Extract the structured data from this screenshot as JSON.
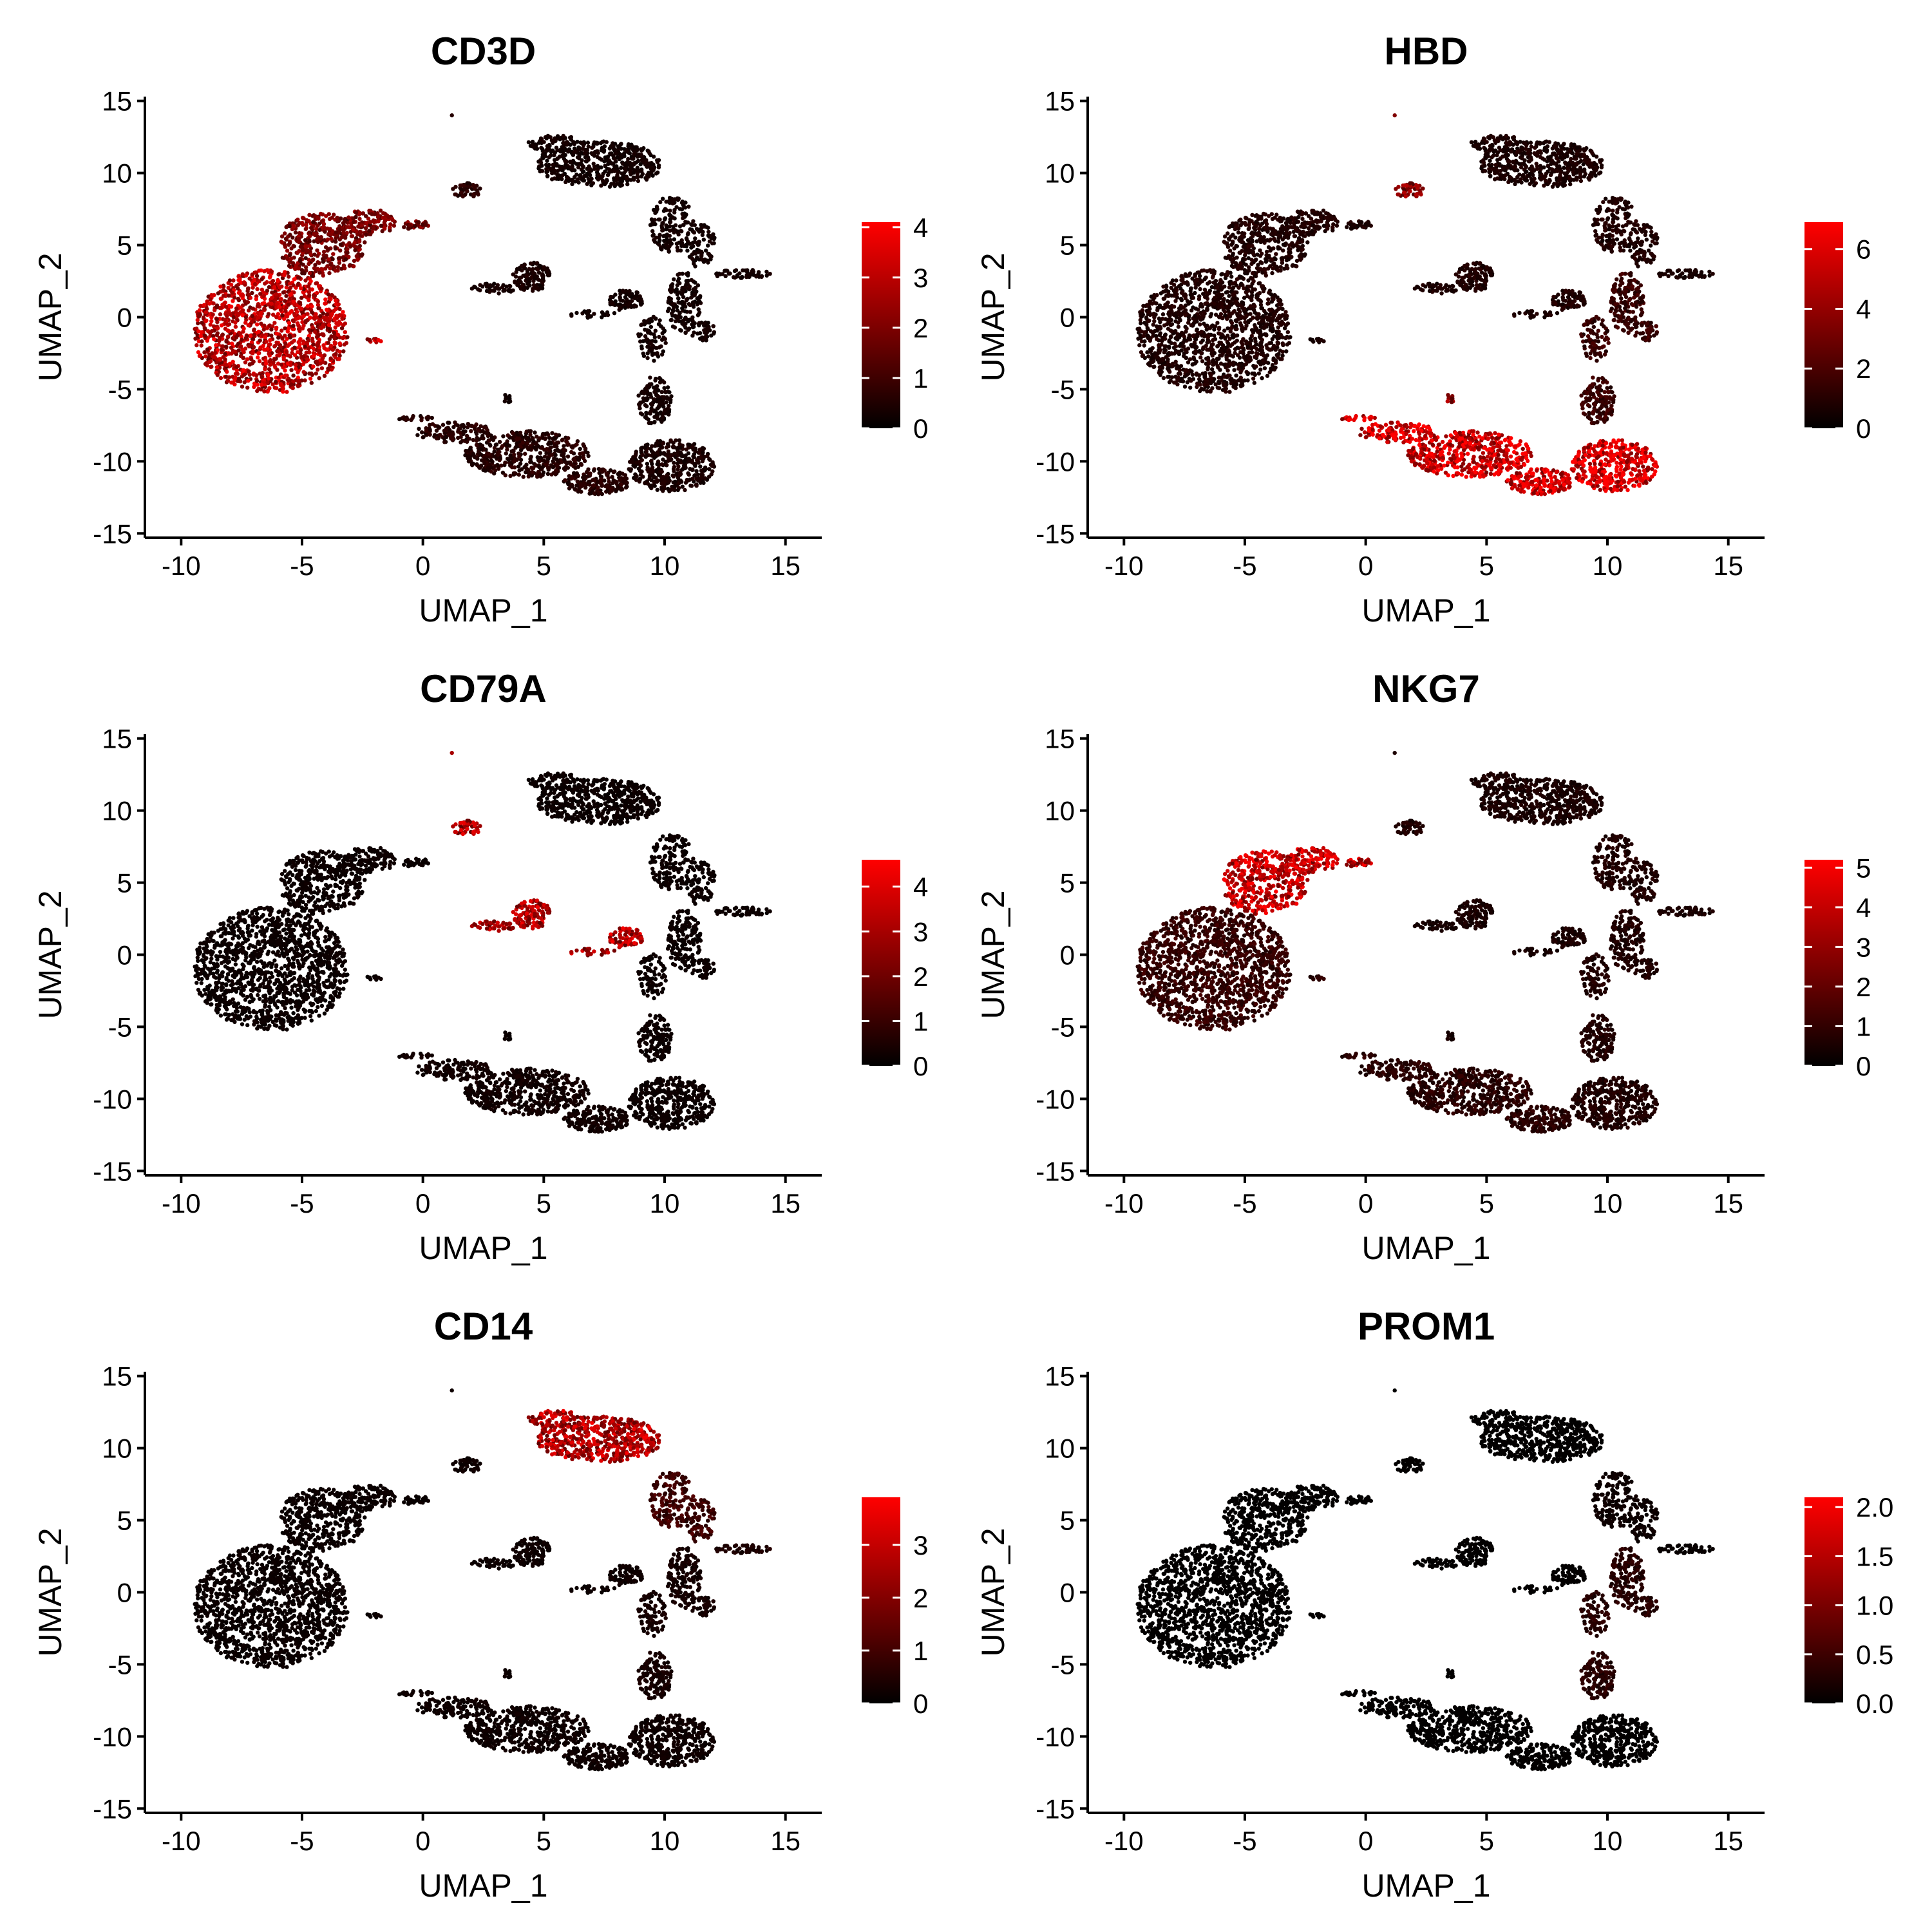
{
  "colors": {
    "low": "#000000",
    "high": "#ff0000",
    "axis": "#000000",
    "background": "#ffffff"
  },
  "chart_data": [
    {
      "type": "scatter",
      "title": "CD3D",
      "xlabel": "UMAP_1",
      "ylabel": "UMAP_2",
      "xlim": [
        -11.5,
        16.5
      ],
      "ylim": [
        -15.3,
        15.3
      ],
      "xticks": [
        "-10",
        "-5",
        "0",
        "5",
        "10",
        "15"
      ],
      "yticks": [
        "15",
        "10",
        "5",
        "0",
        "-5",
        "-10",
        "-15"
      ],
      "colorbar": {
        "min": 0,
        "max": 4.1,
        "ticks": [
          "0",
          "1",
          "2",
          "3",
          "4"
        ]
      },
      "cluster_expression": {
        "tcell": 2.8,
        "tcell_tip": 1.8,
        "tcell_small": 2.8,
        "top_small": 0.6,
        "bottom_arm": 0.6,
        "bottom_right": 0.4,
        "trunk": 0.3,
        "myeloid_top": 0.3,
        "myeloid_branch": 0.3,
        "right_tip": 0.3,
        "bcell_mid": 0.4,
        "bcell_small": 0.3,
        "dot_pair": 0.3
      },
      "grid": false,
      "legend": "right"
    },
    {
      "type": "scatter",
      "title": "HBD",
      "xlabel": "UMAP_1",
      "ylabel": "UMAP_2",
      "xlim": [
        -11.5,
        16.5
      ],
      "ylim": [
        -15.3,
        15.3
      ],
      "xticks": [
        "-10",
        "-5",
        "0",
        "5",
        "10",
        "15"
      ],
      "yticks": [
        "15",
        "10",
        "5",
        "0",
        "-5",
        "-10",
        "-15"
      ],
      "colorbar": {
        "min": 0,
        "max": 6.9,
        "ticks": [
          "0",
          "2",
          "4",
          "6"
        ]
      },
      "cluster_expression": {
        "tcell": 0.8,
        "tcell_tip": 0.8,
        "tcell_small": 0.6,
        "top_small": 3.5,
        "bottom_arm": 5.8,
        "bottom_right": 5.9,
        "trunk": 1.4,
        "myeloid_top": 0.7,
        "myeloid_branch": 0.8,
        "right_tip": 0.6,
        "bcell_mid": 0.8,
        "bcell_small": 0.8,
        "dot_pair": 4.0
      },
      "grid": false,
      "legend": "right"
    },
    {
      "type": "scatter",
      "title": "CD79A",
      "xlabel": "UMAP_1",
      "ylabel": "UMAP_2",
      "xlim": [
        -11.5,
        16.5
      ],
      "ylim": [
        -15.3,
        15.3
      ],
      "xticks": [
        "-10",
        "-5",
        "0",
        "5",
        "10",
        "15"
      ],
      "yticks": [
        "15",
        "10",
        "5",
        "0",
        "-5",
        "-10",
        "-15"
      ],
      "colorbar": {
        "min": 0,
        "max": 4.6,
        "ticks": [
          "0",
          "1",
          "2",
          "3",
          "4"
        ]
      },
      "cluster_expression": {
        "tcell": 0.2,
        "tcell_tip": 0.2,
        "tcell_small": 0.2,
        "top_small": 3.0,
        "bottom_arm": 0.3,
        "bottom_right": 0.2,
        "trunk": 0.2,
        "myeloid_top": 0.2,
        "myeloid_branch": 0.2,
        "right_tip": 0.2,
        "bcell_mid": 3.1,
        "bcell_small": 3.1,
        "dot_pair": 0.2
      },
      "grid": false,
      "legend": "right"
    },
    {
      "type": "scatter",
      "title": "NKG7",
      "xlabel": "UMAP_1",
      "ylabel": "UMAP_2",
      "xlim": [
        -11.5,
        16.5
      ],
      "ylim": [
        -15.3,
        15.3
      ],
      "xticks": [
        "-10",
        "-5",
        "0",
        "5",
        "10",
        "15"
      ],
      "yticks": [
        "15",
        "10",
        "5",
        "0",
        "-5",
        "-10",
        "-15"
      ],
      "colorbar": {
        "min": 0,
        "max": 5.2,
        "ticks": [
          "0",
          "1",
          "2",
          "3",
          "4",
          "5"
        ]
      },
      "cluster_expression": {
        "tcell": 1.0,
        "tcell_tip": 3.8,
        "tcell_small": 0.8,
        "top_small": 0.6,
        "bottom_arm": 0.8,
        "bottom_right": 0.6,
        "trunk": 0.6,
        "myeloid_top": 0.5,
        "myeloid_branch": 0.6,
        "right_tip": 0.5,
        "bcell_mid": 0.5,
        "bcell_small": 0.5,
        "dot_pair": 0.5
      },
      "grid": false,
      "legend": "right"
    },
    {
      "type": "scatter",
      "title": "CD14",
      "xlabel": "UMAP_1",
      "ylabel": "UMAP_2",
      "xlim": [
        -11.5,
        16.5
      ],
      "ylim": [
        -15.3,
        15.3
      ],
      "xticks": [
        "-10",
        "-5",
        "0",
        "5",
        "10",
        "15"
      ],
      "yticks": [
        "15",
        "10",
        "5",
        "0",
        "-5",
        "-10",
        "-15"
      ],
      "colorbar": {
        "min": 0,
        "max": 3.9,
        "ticks": [
          "0",
          "1",
          "2",
          "3"
        ]
      },
      "cluster_expression": {
        "tcell": 0.15,
        "tcell_tip": 0.15,
        "tcell_small": 0.15,
        "top_small": 0.2,
        "bottom_arm": 0.2,
        "bottom_right": 0.2,
        "trunk": 0.3,
        "myeloid_top": 2.6,
        "myeloid_branch": 0.9,
        "right_tip": 0.4,
        "bcell_mid": 0.2,
        "bcell_small": 0.2,
        "dot_pair": 0.2
      },
      "grid": false,
      "legend": "right"
    },
    {
      "type": "scatter",
      "title": "PROM1",
      "xlabel": "UMAP_1",
      "ylabel": "UMAP_2",
      "xlim": [
        -11.5,
        16.5
      ],
      "ylim": [
        -15.3,
        15.3
      ],
      "xticks": [
        "-10",
        "-5",
        "0",
        "5",
        "10",
        "15"
      ],
      "yticks": [
        "15",
        "10",
        "5",
        "0",
        "-5",
        "-10",
        "-15"
      ],
      "colorbar": {
        "min": 0,
        "max": 2.1,
        "ticks": [
          "0.0",
          "0.5",
          "1.0",
          "1.5",
          "2.0"
        ]
      },
      "cluster_expression": {
        "tcell": 0.02,
        "tcell_tip": 0.02,
        "tcell_small": 0.02,
        "top_small": 0.02,
        "bottom_arm": 0.02,
        "bottom_right": 0.02,
        "trunk": 0.3,
        "myeloid_top": 0.02,
        "myeloid_branch": 0.1,
        "right_tip": 0.05,
        "bcell_mid": 0.02,
        "bcell_small": 0.02,
        "dot_pair": 0.02
      },
      "grid": false,
      "legend": "right"
    }
  ]
}
